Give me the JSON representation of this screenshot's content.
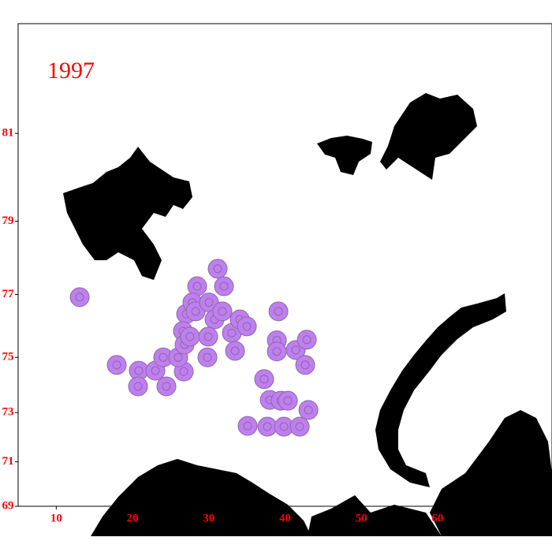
{
  "chart_data": {
    "type": "station-map",
    "title": "1997",
    "title_color": "#ff0000",
    "marker_color": "#bf7fef",
    "xlim": [
      5,
      75
    ],
    "ylim": [
      69,
      83
    ],
    "xticks": [
      10,
      20,
      30,
      40,
      50,
      60
    ],
    "yticks": [
      69,
      71,
      73,
      75,
      77,
      79,
      81
    ],
    "lon": [
      13.07,
      17.93,
      20.82,
      20.72,
      23.0,
      24.44,
      24.03,
      26.72,
      25.99,
      27.03,
      26.61,
      26.82,
      27.54,
      28.47,
      27.85,
      28.27,
      30.03,
      31.16,
      31.99,
      30.75,
      29.92,
      29.82,
      31.78,
      33.02,
      33.44,
      34.06,
      34.99,
      39.13,
      38.92,
      38.92,
      41.4,
      42.64,
      42.85,
      37.26,
      37.99,
      39.44,
      40.37,
      43.06,
      35.09,
      37.68,
      39.85,
      41.92
    ],
    "lat": [
      76.92,
      74.74,
      74.54,
      73.98,
      74.54,
      73.98,
      75.0,
      74.51,
      75.0,
      76.41,
      75.87,
      75.43,
      75.69,
      77.24,
      76.76,
      76.49,
      76.76,
      77.74,
      77.24,
      76.24,
      75.69,
      75.0,
      76.49,
      75.81,
      75.22,
      76.24,
      76.02,
      76.49,
      75.57,
      75.2,
      75.25,
      74.74,
      75.59,
      74.24,
      73.48,
      73.45,
      73.45,
      73.1,
      72.48,
      72.45,
      72.45,
      72.45
    ]
  }
}
